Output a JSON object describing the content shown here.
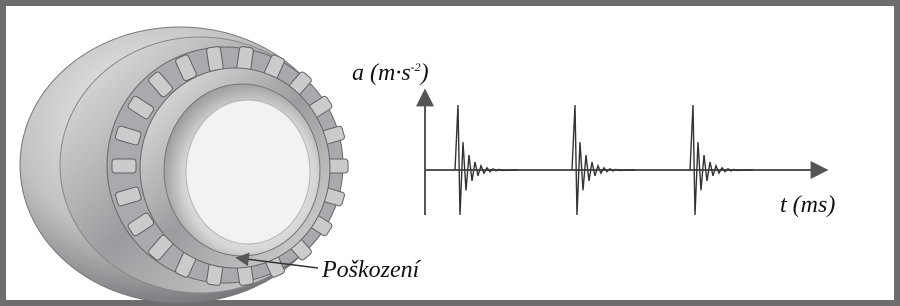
{
  "y_axis_label": {
    "main": "a (m·s",
    "exponent": "-2",
    "close": ")"
  },
  "x_axis_label": "t (ms)",
  "annotation": "Poškození"
}
